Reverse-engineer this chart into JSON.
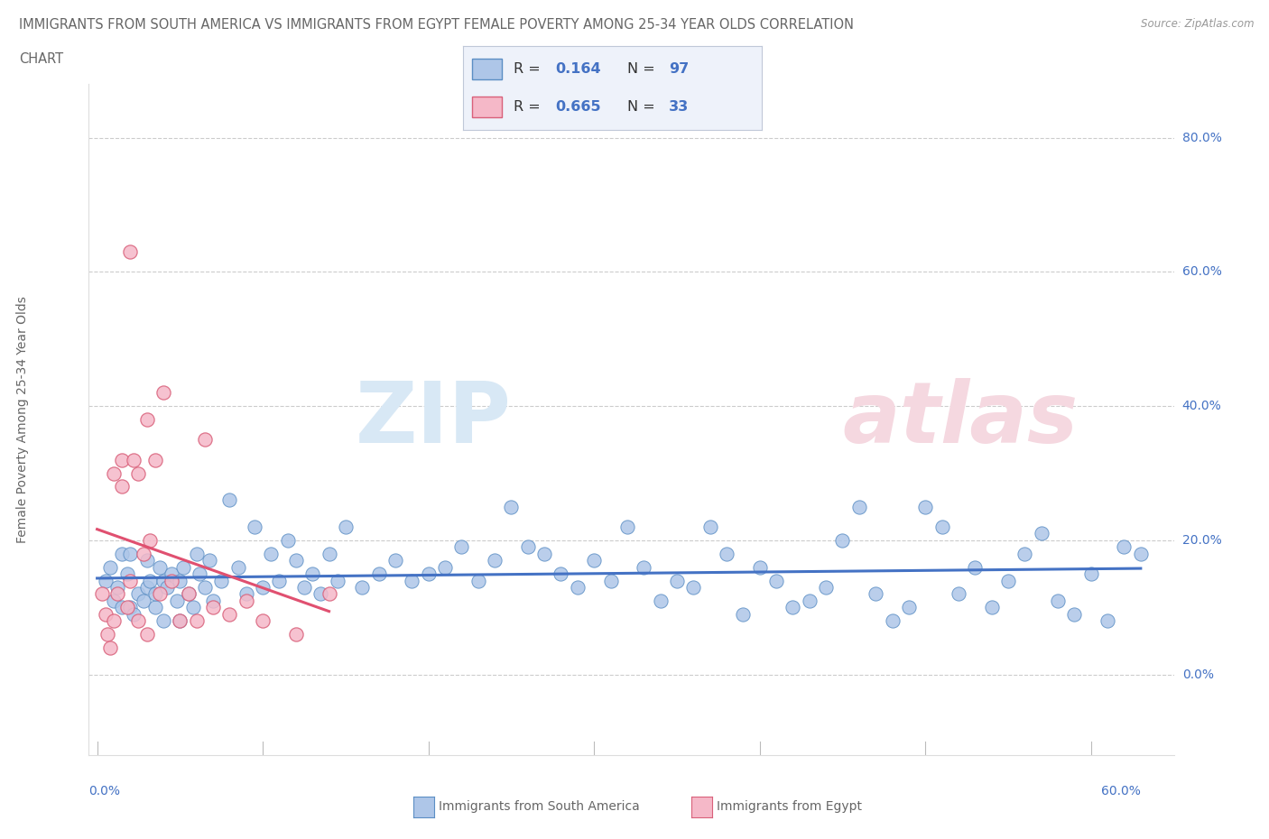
{
  "title_line1": "IMMIGRANTS FROM SOUTH AMERICA VS IMMIGRANTS FROM EGYPT FEMALE POVERTY AMONG 25-34 YEAR OLDS CORRELATION",
  "title_line2": "CHART",
  "source_text": "Source: ZipAtlas.com",
  "ylabel": "Female Poverty Among 25-34 Year Olds",
  "y_tick_labels": [
    "0.0%",
    "20.0%",
    "40.0%",
    "60.0%",
    "80.0%"
  ],
  "y_tick_values": [
    0,
    20,
    40,
    60,
    80
  ],
  "x_bottom_left": "0.0%",
  "x_bottom_right": "60.0%",
  "legend_R1": "0.164",
  "legend_N1": "97",
  "legend_R2": "0.665",
  "legend_N2": "33",
  "color_sa_fill": "#aec6e8",
  "color_sa_edge": "#5b8ec4",
  "color_sa_line": "#4472c4",
  "color_eg_fill": "#f5b8c8",
  "color_eg_edge": "#d9607a",
  "color_eg_line": "#e05070",
  "color_grid": "#cccccc",
  "color_title": "#666666",
  "color_source": "#999999",
  "color_axis_blue": "#4472c4",
  "color_legend_bg": "#eef2fa",
  "bottom_legend_sa": "Immigrants from South America",
  "bottom_legend_eg": "Immigrants from Egypt",
  "sa_x": [
    0.5,
    0.8,
    1.0,
    1.2,
    1.5,
    1.5,
    1.8,
    2.0,
    2.0,
    2.2,
    2.5,
    2.8,
    3.0,
    3.0,
    3.2,
    3.5,
    3.5,
    3.8,
    4.0,
    4.0,
    4.2,
    4.5,
    4.8,
    5.0,
    5.0,
    5.2,
    5.5,
    5.8,
    6.0,
    6.2,
    6.5,
    6.8,
    7.0,
    7.5,
    8.0,
    8.5,
    9.0,
    9.5,
    10.0,
    10.5,
    11.0,
    11.5,
    12.0,
    12.5,
    13.0,
    13.5,
    14.0,
    14.5,
    15.0,
    16.0,
    17.0,
    18.0,
    19.0,
    20.0,
    21.0,
    22.0,
    23.0,
    24.0,
    25.0,
    26.0,
    27.0,
    28.0,
    29.0,
    30.0,
    31.0,
    32.0,
    33.0,
    34.0,
    35.0,
    36.0,
    37.0,
    38.0,
    39.0,
    40.0,
    41.0,
    42.0,
    43.0,
    44.0,
    45.0,
    46.0,
    47.0,
    48.0,
    49.0,
    50.0,
    51.0,
    52.0,
    53.0,
    54.0,
    55.0,
    56.0,
    57.0,
    58.0,
    59.0,
    60.0,
    61.0,
    62.0,
    63.0
  ],
  "sa_y": [
    14,
    16,
    11,
    13,
    18,
    10,
    15,
    18,
    10,
    9,
    12,
    11,
    17,
    13,
    14,
    10,
    12,
    16,
    14,
    8,
    13,
    15,
    11,
    14,
    8,
    16,
    12,
    10,
    18,
    15,
    13,
    17,
    11,
    14,
    26,
    16,
    12,
    22,
    13,
    18,
    14,
    20,
    17,
    13,
    15,
    12,
    18,
    14,
    22,
    13,
    15,
    17,
    14,
    15,
    16,
    19,
    14,
    17,
    25,
    19,
    18,
    15,
    13,
    17,
    14,
    22,
    16,
    11,
    14,
    13,
    22,
    18,
    9,
    16,
    14,
    10,
    11,
    13,
    20,
    25,
    12,
    8,
    10,
    25,
    22,
    12,
    16,
    10,
    14,
    18,
    21,
    11,
    9,
    15,
    8,
    19,
    18
  ],
  "eg_x": [
    0.3,
    0.5,
    0.6,
    0.8,
    1.0,
    1.0,
    1.2,
    1.5,
    1.5,
    1.8,
    2.0,
    2.0,
    2.2,
    2.5,
    2.5,
    2.8,
    3.0,
    3.0,
    3.2,
    3.5,
    3.8,
    4.0,
    4.5,
    5.0,
    5.5,
    6.0,
    6.5,
    7.0,
    8.0,
    9.0,
    10.0,
    12.0,
    14.0
  ],
  "eg_y": [
    12,
    9,
    6,
    4,
    30,
    8,
    12,
    32,
    28,
    10,
    63,
    14,
    32,
    30,
    8,
    18,
    38,
    6,
    20,
    32,
    12,
    42,
    14,
    8,
    12,
    8,
    35,
    10,
    9,
    11,
    8,
    6,
    12
  ]
}
